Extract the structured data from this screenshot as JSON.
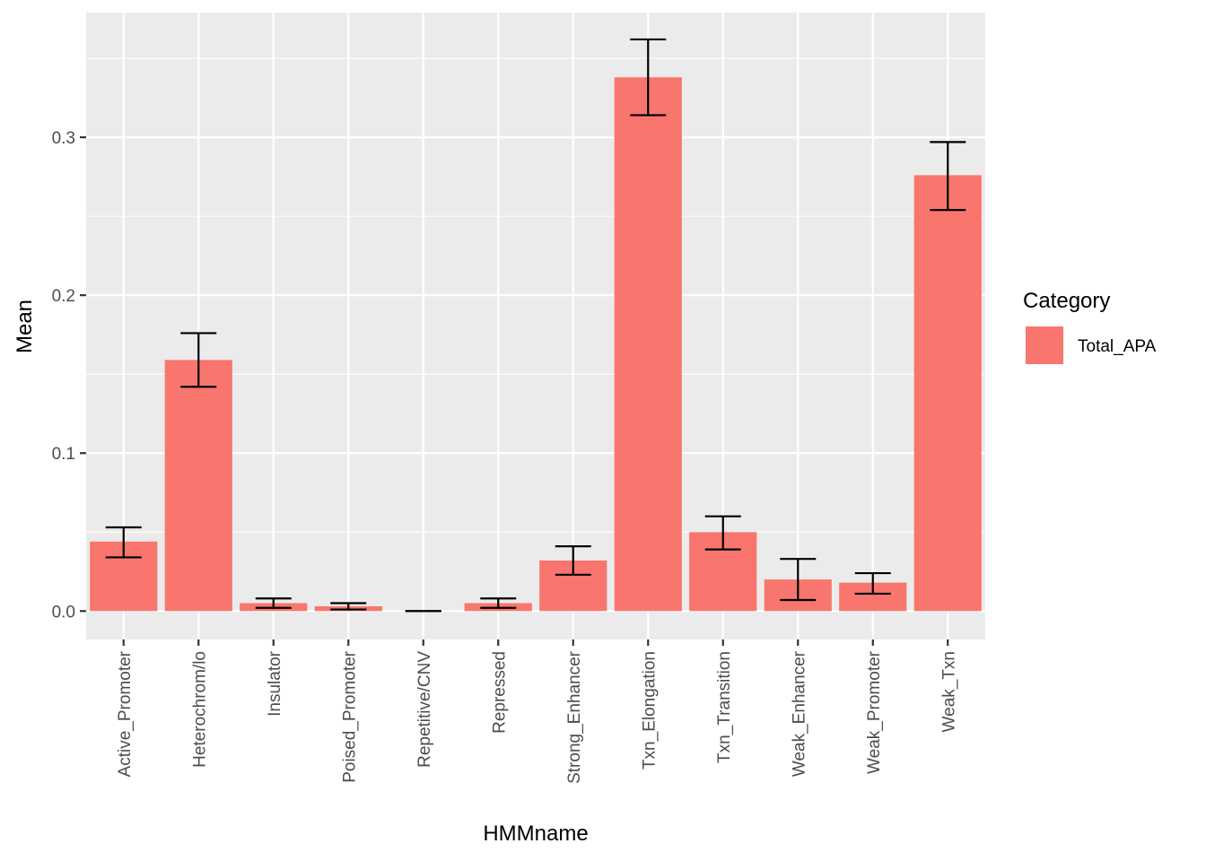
{
  "chart_data": {
    "type": "bar",
    "xlabel": "HMMname",
    "ylabel": "Mean",
    "categories": [
      "Active_Promoter",
      "Heterochrom/lo",
      "Insulator",
      "Poised_Promoter",
      "Repetitive/CNV",
      "Repressed",
      "Strong_Enhancer",
      "Txn_Elongation",
      "Txn_Transition",
      "Weak_Enhancer",
      "Weak_Promoter",
      "Weak_Txn"
    ],
    "series": [
      {
        "name": "Total_APA",
        "color": "#F8766D",
        "values": [
          0.044,
          0.159,
          0.005,
          0.003,
          0.0,
          0.005,
          0.032,
          0.338,
          0.05,
          0.02,
          0.018,
          0.276
        ],
        "error_low": [
          0.034,
          0.142,
          0.002,
          0.001,
          0.0,
          0.002,
          0.023,
          0.314,
          0.039,
          0.007,
          0.011,
          0.254
        ],
        "error_high": [
          0.053,
          0.176,
          0.008,
          0.005,
          0.0,
          0.008,
          0.041,
          0.362,
          0.06,
          0.033,
          0.024,
          0.297
        ]
      }
    ],
    "yticks": [
      "0.0",
      "0.1",
      "0.2",
      "0.3"
    ],
    "ylim": [
      -0.018,
      0.379
    ],
    "grid": true,
    "legend": {
      "title": "Category",
      "position": "right",
      "items": [
        {
          "label": "Total_APA",
          "color": "#F8766D"
        }
      ]
    },
    "panel_background": "#EBEBEB",
    "grid_color": "#FFFFFF"
  }
}
